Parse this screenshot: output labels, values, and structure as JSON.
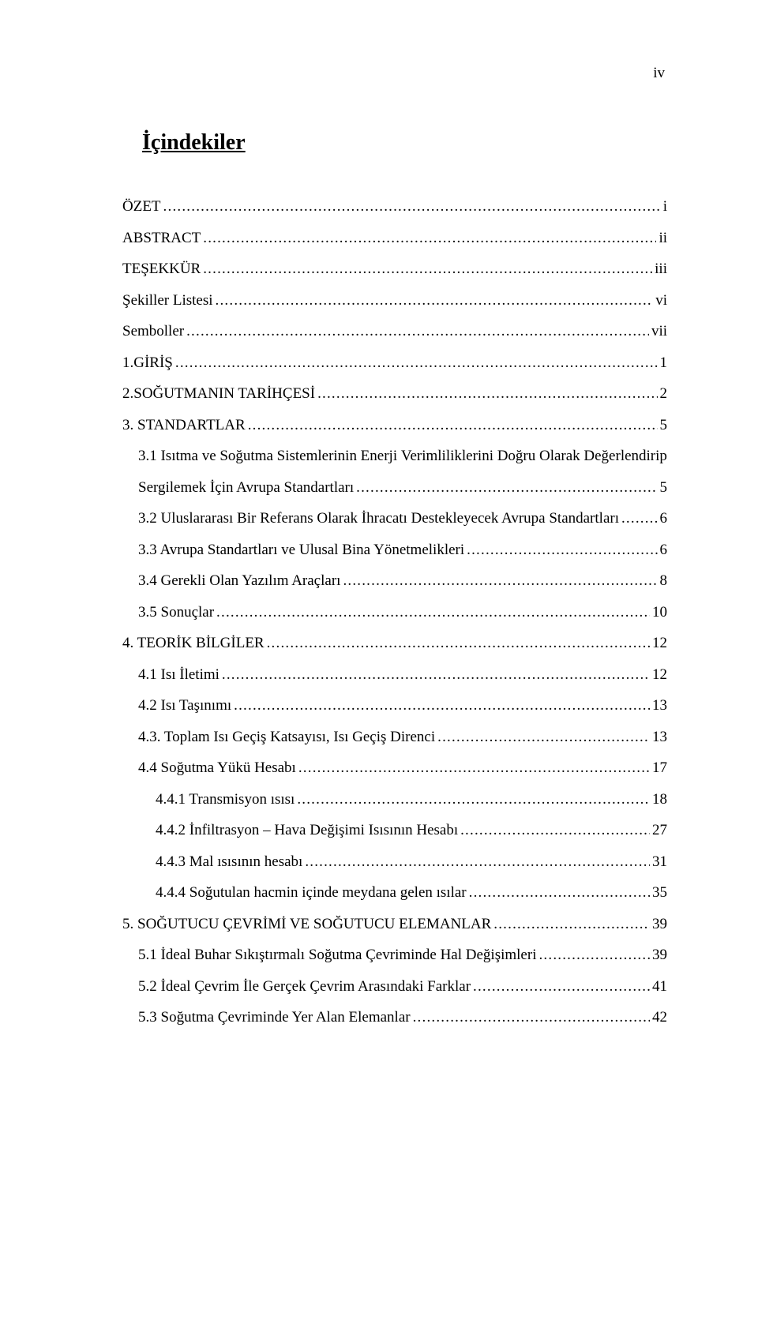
{
  "document": {
    "page_label_roman": "iv",
    "heading": "İçindekiler"
  },
  "toc": {
    "items": [
      {
        "label": "ÖZET",
        "page": "i",
        "indent": 0
      },
      {
        "label": "ABSTRACT",
        "page": "ii",
        "indent": 0
      },
      {
        "label": "TEŞEKKÜR",
        "page": "iii",
        "indent": 0
      },
      {
        "label": "Şekiller Listesi",
        "page": "vi",
        "indent": 0
      },
      {
        "label": "Semboller",
        "page": "vii",
        "indent": 0
      },
      {
        "label": "1.GİRİŞ",
        "page": "1",
        "indent": 0
      },
      {
        "label": "2.SOĞUTMANIN TARİHÇESİ",
        "page": "2",
        "indent": 0
      },
      {
        "label": "3. STANDARTLAR",
        "page": "5",
        "indent": 0
      },
      {
        "label": "3.1 Isıtma ve Soğutma Sistemlerinin Enerji Verimliliklerini Doğru Olarak Değerlendirip",
        "line2": "Sergilemek İçin Avrupa Standartları",
        "page": "5",
        "indent": 1
      },
      {
        "label": "3.2 Uluslararası Bir Referans Olarak İhracatı Destekleyecek Avrupa Standartları",
        "page": "6",
        "indent": 1
      },
      {
        "label": "3.3 Avrupa Standartları ve Ulusal Bina Yönetmelikleri",
        "page": "6",
        "indent": 1
      },
      {
        "label": "3.4 Gerekli Olan Yazılım Araçları",
        "page": "8",
        "indent": 1
      },
      {
        "label": "3.5 Sonuçlar",
        "page": "10",
        "indent": 1
      },
      {
        "label": "4. TEORİK BİLGİLER",
        "page": "12",
        "indent": 0
      },
      {
        "label": "4.1 Isı İletimi",
        "page": "12",
        "indent": 1
      },
      {
        "label": "4.2 Isı Taşınımı",
        "page": "13",
        "indent": 1
      },
      {
        "label": "4.3. Toplam Isı Geçiş Katsayısı, Isı Geçiş Direnci",
        "page": "13",
        "indent": 1
      },
      {
        "label": "4.4 Soğutma Yükü Hesabı",
        "page": "17",
        "indent": 1
      },
      {
        "label": "4.4.1 Transmisyon ısısı",
        "page": "18",
        "indent": 2
      },
      {
        "label": "4.4.2 İnfiltrasyon – Hava Değişimi Isısının Hesabı",
        "page": "27",
        "indent": 2
      },
      {
        "label": "4.4.3 Mal ısısının hesabı",
        "page": "31",
        "indent": 2
      },
      {
        "label": "4.4.4 Soğutulan hacmin içinde meydana gelen ısılar",
        "page": "35",
        "indent": 2
      },
      {
        "label": "5. SOĞUTUCU ÇEVRİMİ VE SOĞUTUCU ELEMANLAR",
        "page": "39",
        "indent": 0
      },
      {
        "label": "5.1 İdeal Buhar Sıkıştırmalı Soğutma Çevriminde Hal Değişimleri",
        "page": "39",
        "indent": 1
      },
      {
        "label": "5.2 İdeal Çevrim İle Gerçek Çevrim Arasındaki Farklar",
        "page": "41",
        "indent": 1
      },
      {
        "label": "5.3 Soğutma Çevriminde Yer Alan Elemanlar",
        "page": "42",
        "indent": 1
      }
    ]
  }
}
